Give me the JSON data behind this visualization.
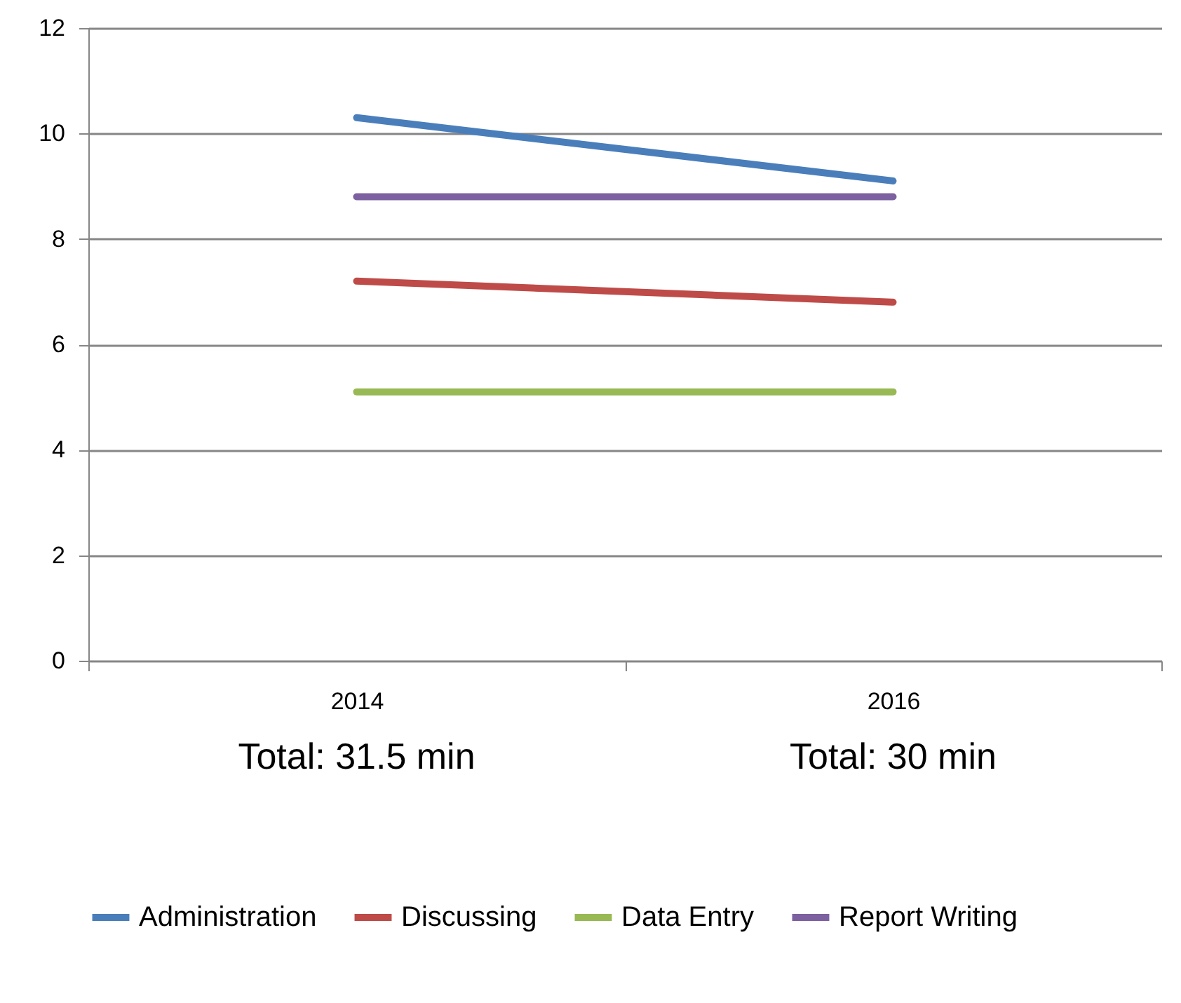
{
  "chart_data": {
    "type": "line",
    "categories": [
      "2014",
      "2016"
    ],
    "series": [
      {
        "name": "Administration",
        "color": "#4a7ebb",
        "values": [
          10.3,
          9.1
        ]
      },
      {
        "name": "Discussing",
        "color": "#be4b48",
        "values": [
          7.2,
          6.8
        ]
      },
      {
        "name": "Data Entry",
        "color": "#98b954",
        "values": [
          5.1,
          5.1
        ]
      },
      {
        "name": "Report Writing",
        "color": "#7d60a0",
        "values": [
          8.8,
          8.8
        ]
      }
    ],
    "ylim": [
      0,
      12
    ],
    "yticks": [
      0,
      2,
      4,
      6,
      8,
      10,
      12
    ],
    "grid": "y",
    "legend": "bottom",
    "annotations": [
      "Total: 31.5 min",
      "Total: 30 min"
    ]
  }
}
